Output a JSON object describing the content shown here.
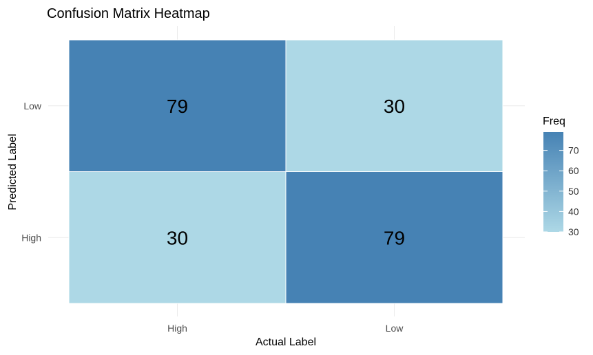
{
  "chart_data": {
    "type": "heatmap",
    "title": "Confusion Matrix Heatmap",
    "xlabel": "Actual Label",
    "ylabel": "Predicted Label",
    "x_categories": [
      "High",
      "Low"
    ],
    "y_categories": [
      "High",
      "Low"
    ],
    "cells": [
      {
        "actual": "High",
        "predicted": "Low",
        "freq": 79
      },
      {
        "actual": "Low",
        "predicted": "Low",
        "freq": 30
      },
      {
        "actual": "High",
        "predicted": "High",
        "freq": 30
      },
      {
        "actual": "Low",
        "predicted": "High",
        "freq": 79
      }
    ],
    "legend": {
      "title": "Freq",
      "placement": "right",
      "breaks": [
        30,
        40,
        50,
        60,
        70
      ],
      "range": [
        30,
        79
      ],
      "low_color": "#add8e6",
      "high_color": "#4682b4"
    },
    "grid": true
  }
}
